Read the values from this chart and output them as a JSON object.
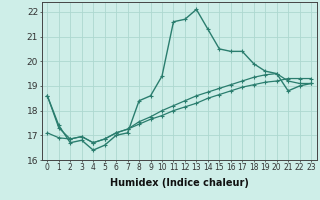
{
  "xlabel": "Humidex (Indice chaleur)",
  "ylabel": "",
  "bg_color": "#ceeee8",
  "line_color": "#2a7d6e",
  "grid_color": "#add8d0",
  "xlim": [
    -0.5,
    23.5
  ],
  "ylim": [
    16,
    22.4
  ],
  "yticks": [
    16,
    17,
    18,
    19,
    20,
    21,
    22
  ],
  "xticks": [
    0,
    1,
    2,
    3,
    4,
    5,
    6,
    7,
    8,
    9,
    10,
    11,
    12,
    13,
    14,
    15,
    16,
    17,
    18,
    19,
    20,
    21,
    22,
    23
  ],
  "series": [
    [
      18.6,
      17.4,
      16.7,
      16.8,
      16.4,
      16.6,
      17.0,
      17.1,
      18.4,
      18.6,
      19.4,
      21.6,
      21.7,
      22.1,
      21.3,
      20.5,
      20.4,
      20.4,
      19.9,
      19.6,
      19.5,
      18.8,
      19.0,
      19.1
    ],
    [
      18.6,
      17.3,
      16.85,
      16.95,
      16.7,
      16.85,
      17.1,
      17.25,
      17.55,
      17.75,
      18.0,
      18.2,
      18.4,
      18.6,
      18.75,
      18.9,
      19.05,
      19.2,
      19.35,
      19.45,
      19.5,
      19.2,
      19.1,
      19.1
    ],
    [
      17.1,
      16.9,
      16.85,
      16.95,
      16.7,
      16.85,
      17.1,
      17.25,
      17.45,
      17.65,
      17.8,
      18.0,
      18.15,
      18.3,
      18.5,
      18.65,
      18.8,
      18.95,
      19.05,
      19.15,
      19.2,
      19.3,
      19.3,
      19.3
    ]
  ],
  "linewidth": [
    1.0,
    0.9,
    0.9
  ],
  "marker_size": [
    2.5,
    2.5,
    2.5
  ]
}
